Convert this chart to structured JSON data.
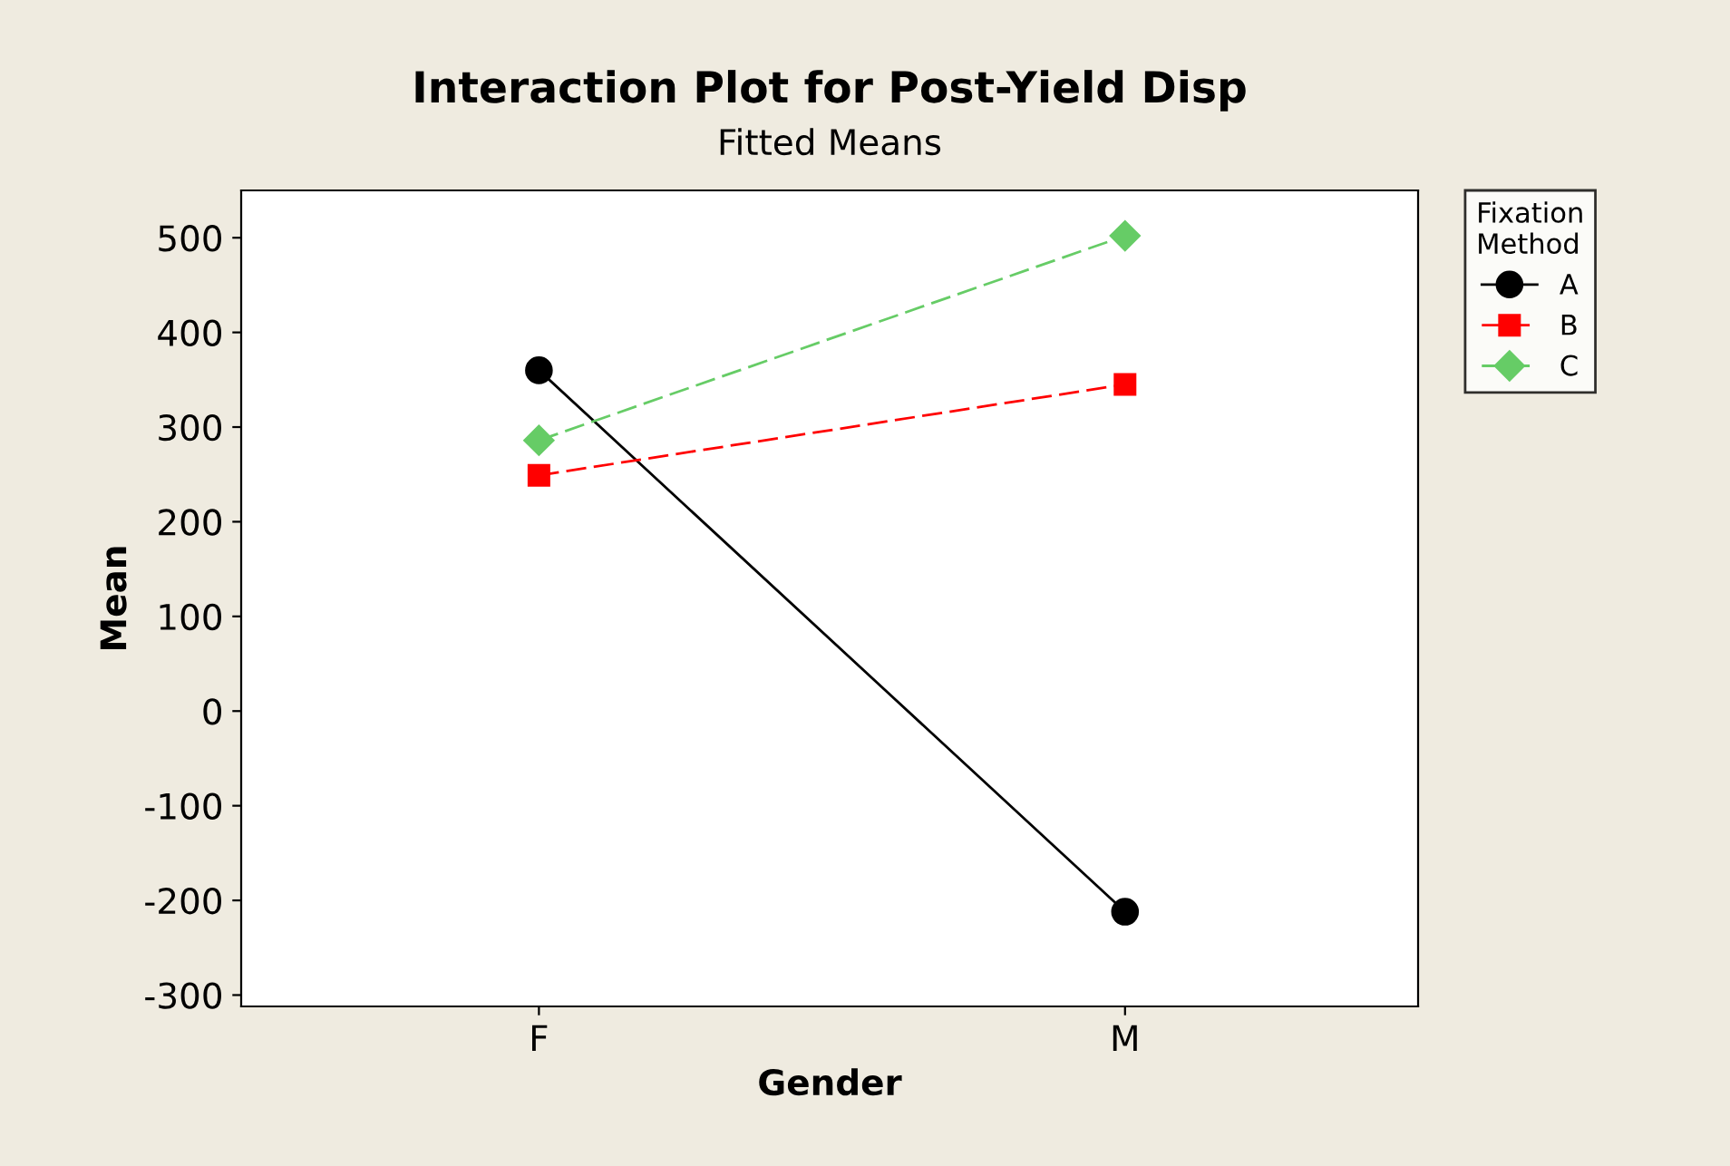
{
  "chart_data": {
    "type": "line",
    "title": "Interaction Plot for Post-Yield Disp",
    "subtitle": "Fitted Means",
    "xlabel": "Gender",
    "ylabel": "Mean",
    "categories": [
      "F",
      "M"
    ],
    "series": [
      {
        "name": "A",
        "color": "#000000",
        "values": [
          360,
          -212
        ],
        "marker": "circle",
        "line_style": "solid"
      },
      {
        "name": "B",
        "color": "#ff0000",
        "values": [
          249,
          345
        ],
        "marker": "square",
        "line_style": "dashed"
      },
      {
        "name": "C",
        "color": "#66cc66",
        "values": [
          286,
          502
        ],
        "marker": "diamond",
        "line_style": "dashed"
      }
    ],
    "ylim": [
      -312,
      550
    ],
    "yticks": [
      -300,
      -200,
      -100,
      0,
      100,
      200,
      300,
      400,
      500
    ],
    "grid": false,
    "legend": "top right",
    "legend_title": "Fixation\nMethod"
  }
}
